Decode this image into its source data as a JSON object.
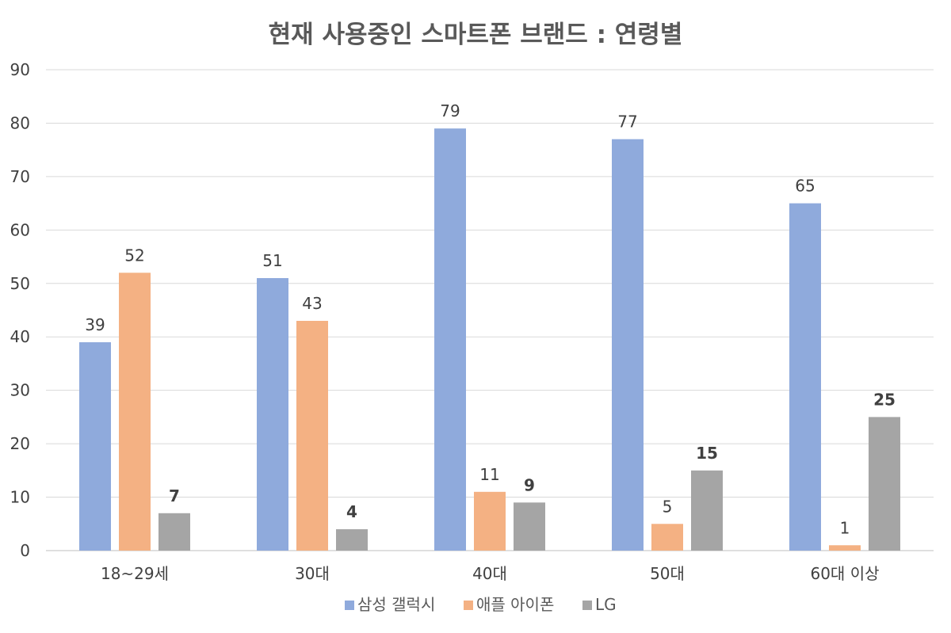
{
  "chart_data": {
    "type": "bar",
    "title": "현재 사용중인 스마트폰 브랜드 : 연령별",
    "xlabel": "",
    "ylabel": "",
    "ylim": [
      0,
      90
    ],
    "yticks": [
      0,
      10,
      20,
      30,
      40,
      50,
      60,
      70,
      80,
      90
    ],
    "categories": [
      "18~29세",
      "30대",
      "40대",
      "50대",
      "60대 이상"
    ],
    "series": [
      {
        "name": "삼성 갤럭시",
        "color": "#8faadc",
        "values": [
          39,
          51,
          79,
          77,
          65
        ]
      },
      {
        "name": "애플 아이폰",
        "color": "#f4b183",
        "values": [
          52,
          43,
          11,
          5,
          1
        ]
      },
      {
        "name": "LG",
        "color": "#a5a5a5",
        "values": [
          7,
          4,
          9,
          15,
          25
        ]
      }
    ],
    "grid": true,
    "legend": "bottom"
  }
}
